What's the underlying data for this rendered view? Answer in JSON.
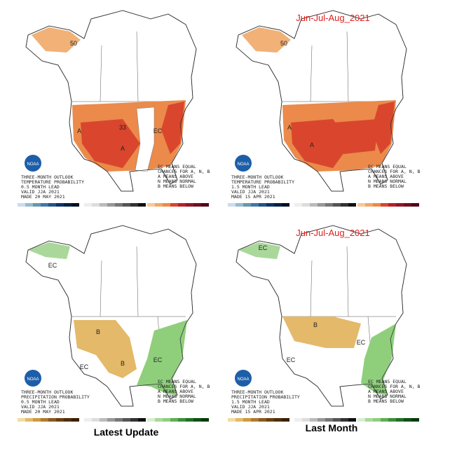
{
  "panels": [
    {
      "outlook_lines": [
        "THREE-MONTH OUTLOOK",
        "TEMPERATURE PROBABILITY",
        "0.5 MONTH LEAD",
        "VALID JJA 2021",
        "MADE 20 MAY 2021"
      ],
      "legend_lines": [
        "EC MEANS EQUAL",
        "CHANCES FOR A, N, B",
        "A MEANS ABOVE",
        "N MEANS NORMAL",
        "B MEANS BELOW"
      ],
      "map_labels": [
        "A",
        "A",
        "EC",
        "50",
        "33"
      ]
    },
    {
      "heading": "Jun-Jul-Aug_2021",
      "outlook_lines": [
        "THREE-MONTH OUTLOOK",
        "TEMPERATURE PROBABILITY",
        "1.5 MONTH LEAD",
        "VALID JJA 2021",
        "MADE 15 APR 2021"
      ],
      "legend_lines": [
        "EC MEANS EQUAL",
        "CHANCES FOR A, N, B",
        "A MEANS ABOVE",
        "N MEANS NORMAL",
        "B MEANS BELOW"
      ],
      "map_labels": [
        "A",
        "A",
        "50"
      ]
    },
    {
      "outlook_lines": [
        "THREE-MONTH OUTLOOK",
        "PRECIPITATION PROBABILITY",
        "0.5 MONTH LEAD",
        "VALID JJA 2021",
        "MADE 20 MAY 2021"
      ],
      "legend_lines": [
        "EC MEANS EQUAL",
        "CHANCES FOR A, N, B",
        "A MEANS ABOVE",
        "N MEANS NORMAL",
        "B MEANS BELOW"
      ],
      "map_labels": [
        "EC",
        "B",
        "B",
        "EC",
        "EC"
      ]
    },
    {
      "heading": "Jun-Jul-Aug_2021",
      "outlook_lines": [
        "THREE-MONTH OUTLOOK",
        "PRECIPITATION PROBABILITY",
        "1.5 MONTH LEAD",
        "VALID JJA 2021",
        "MADE 15 APR 2021"
      ],
      "legend_lines": [
        "EC MEANS EQUAL",
        "CHANCES FOR A, N, B",
        "A MEANS ABOVE",
        "N MEANS NORMAL",
        "B MEANS BELOW"
      ],
      "map_labels": [
        "EC",
        "B",
        "EC",
        "EC"
      ]
    }
  ],
  "captions": [
    "Latest Update",
    "Last Month"
  ],
  "logo_text": "NOAA"
}
